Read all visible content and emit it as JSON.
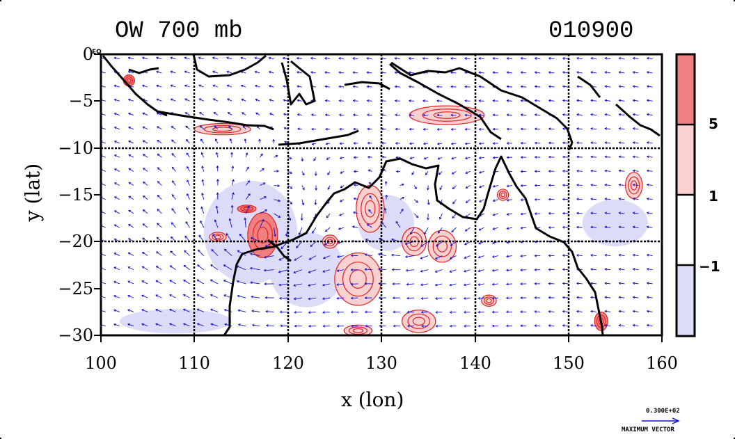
{
  "title": {
    "field": "OW 700 mb",
    "datetime": "010900"
  },
  "x_axis": {
    "label": "x (lon)",
    "ticks": [
      "100",
      "110",
      "120",
      "130",
      "140",
      "150",
      "160"
    ]
  },
  "y_axis": {
    "label": "y (lat)",
    "ticks": [
      "0",
      "−5",
      "−10",
      "−15",
      "−20",
      "−25",
      "−30"
    ],
    "eq_mark": "EQ"
  },
  "colorbar": {
    "levels": [
      "5",
      "1",
      "−1"
    ],
    "colors": {
      "strong_positive": "#f08080",
      "weak_positive": "#fbd0d0",
      "neutral": "#ffffff",
      "negative": "#dcdcf8"
    }
  },
  "max_vector": {
    "value": "0.300E+02",
    "label": "MAXIMUM VECTOR"
  },
  "colors": {
    "vector": "#1010d0",
    "contour": "#e02020",
    "coast": "#000000",
    "grid": "#000000"
  },
  "chart_data": {
    "type": "map",
    "projection": "lat-lon",
    "xlim": [
      100,
      160
    ],
    "ylim": [
      -30,
      0
    ],
    "grid": true,
    "grid_lon": [
      110,
      120,
      130,
      140,
      150
    ],
    "grid_lat": [
      -10,
      -20
    ],
    "fill_levels": [
      -1,
      1,
      5
    ],
    "strong_cells": [
      {
        "lon": 117.3,
        "lat": -19.3,
        "rx": 1.6,
        "ry": 2.4
      },
      {
        "lon": 115.6,
        "lat": -16.5,
        "rx": 1.0,
        "ry": 0.4
      },
      {
        "lon": 153.5,
        "lat": -28.5,
        "rx": 0.7,
        "ry": 1.0
      },
      {
        "lon": 103.0,
        "lat": -2.8,
        "rx": 0.6,
        "ry": 0.6
      }
    ],
    "weak_cells": [
      {
        "lon": 128.8,
        "lat": -16.5,
        "rx": 1.5,
        "ry": 2.5
      },
      {
        "lon": 127.5,
        "lat": -24.0,
        "rx": 2.5,
        "ry": 2.8
      },
      {
        "lon": 133.5,
        "lat": -20.0,
        "rx": 1.3,
        "ry": 1.5
      },
      {
        "lon": 136.5,
        "lat": -20.5,
        "rx": 1.5,
        "ry": 1.7
      },
      {
        "lon": 134.0,
        "lat": -28.5,
        "rx": 1.8,
        "ry": 1.2
      },
      {
        "lon": 127.5,
        "lat": -29.5,
        "rx": 1.5,
        "ry": 0.6
      },
      {
        "lon": 157.0,
        "lat": -14.0,
        "rx": 0.9,
        "ry": 1.4
      },
      {
        "lon": 141.5,
        "lat": -26.3,
        "rx": 0.8,
        "ry": 0.6
      },
      {
        "lon": 112.5,
        "lat": -19.5,
        "rx": 0.9,
        "ry": 0.5
      },
      {
        "lon": 124.5,
        "lat": -20.0,
        "rx": 0.8,
        "ry": 0.7
      },
      {
        "lon": 143.0,
        "lat": -15.0,
        "rx": 0.6,
        "ry": 0.6
      },
      {
        "lon": 137.0,
        "lat": -6.5,
        "rx": 4.0,
        "ry": 1.0
      },
      {
        "lon": 113.0,
        "lat": -8.0,
        "rx": 3.0,
        "ry": 0.6
      }
    ],
    "negative_cells": [
      {
        "lon": 116.0,
        "lat": -19.0,
        "rx": 5.0,
        "ry": 5.5
      },
      {
        "lon": 122.0,
        "lat": -23.0,
        "rx": 4.0,
        "ry": 4.0
      },
      {
        "lon": 108.0,
        "lat": -28.5,
        "rx": 6.0,
        "ry": 1.3
      },
      {
        "lon": 130.5,
        "lat": -18.0,
        "rx": 3.0,
        "ry": 3.0
      },
      {
        "lon": 155.0,
        "lat": -18.0,
        "rx": 3.5,
        "ry": 2.5
      }
    ],
    "wind_field": {
      "vortices": [
        {
          "lon": 117.5,
          "lat": -19.0,
          "strength": 1.0,
          "radius": 6.0,
          "sense": "clockwise"
        },
        {
          "lon": 133.0,
          "lat": -18.5,
          "strength": 0.6,
          "radius": 5.0,
          "sense": "clockwise"
        }
      ],
      "background_u": -0.6,
      "background_v": 0.1
    }
  }
}
